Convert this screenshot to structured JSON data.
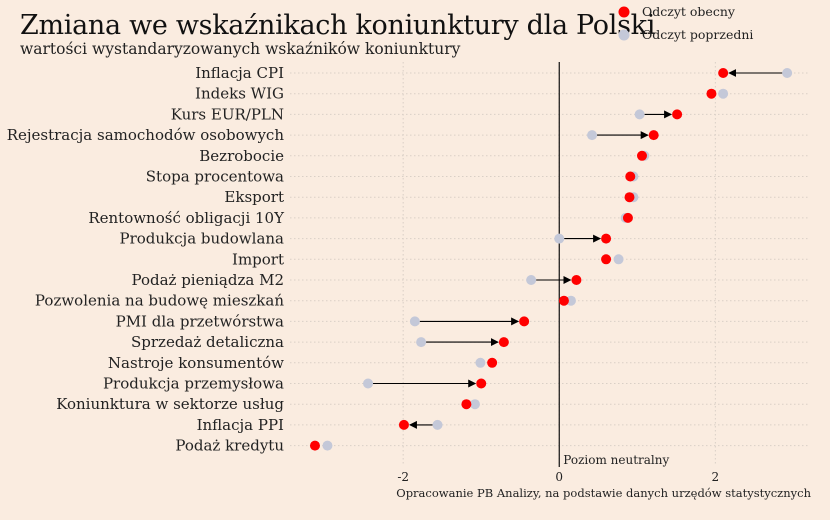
{
  "chart_data": {
    "type": "dot-arrow",
    "title": "Zmiana we wskaźnikach koniunktury dla Polski",
    "subtitle": "wartości wystandaryzowanych wskaźników koniunktury",
    "caption": "Opracowanie PB Analizy, na podstawie danych urzędów statystycznych",
    "reference_line": {
      "x": 0,
      "label": "Poziom neutralny"
    },
    "xlim": [
      -3.45,
      3.2
    ],
    "xticks": [
      -2,
      0,
      2
    ],
    "grid": true,
    "legend_position": "top-right",
    "colors": {
      "current": "#ff0000",
      "previous": "#c4c8d8",
      "arrow": "#000000",
      "background": "#faece0"
    },
    "series": [
      {
        "name": "Odczyt obecny",
        "key": "current"
      },
      {
        "name": "Odczyt poprzedni",
        "key": "previous"
      }
    ],
    "categories": [
      "Inflacja CPI",
      "Indeks WIG",
      "Kurs EUR/PLN",
      "Rejestracja samochodów osobowych",
      "Bezrobocie",
      "Stopa procentowa",
      "Eksport",
      "Rentowność obligacji 10Y",
      "Produkcja budowlana",
      "Import",
      "Podaż pieniądza M2",
      "Pozwolenia na budowę mieszkań",
      "PMI dla przetwórstwa",
      "Sprzedaż detaliczna",
      "Nastroje konsumentów",
      "Produkcja przemysłowa",
      "Koniunktura w sektorze usług",
      "Inflacja PPI",
      "Podaż kredytu"
    ],
    "current": [
      2.1,
      1.95,
      1.51,
      1.21,
      1.06,
      0.91,
      0.9,
      0.88,
      0.6,
      0.6,
      0.22,
      0.06,
      -0.45,
      -0.71,
      -0.86,
      -1.0,
      -1.19,
      -1.99,
      -3.13
    ],
    "previous": [
      2.92,
      2.1,
      1.03,
      0.42,
      1.09,
      0.95,
      0.95,
      0.85,
      0.0,
      0.76,
      -0.36,
      0.15,
      -1.85,
      -1.77,
      -1.01,
      -2.45,
      -1.08,
      -1.56,
      -2.97
    ],
    "arrows": [
      true,
      false,
      true,
      true,
      false,
      false,
      false,
      false,
      true,
      false,
      true,
      false,
      true,
      true,
      false,
      true,
      false,
      true,
      false
    ]
  }
}
